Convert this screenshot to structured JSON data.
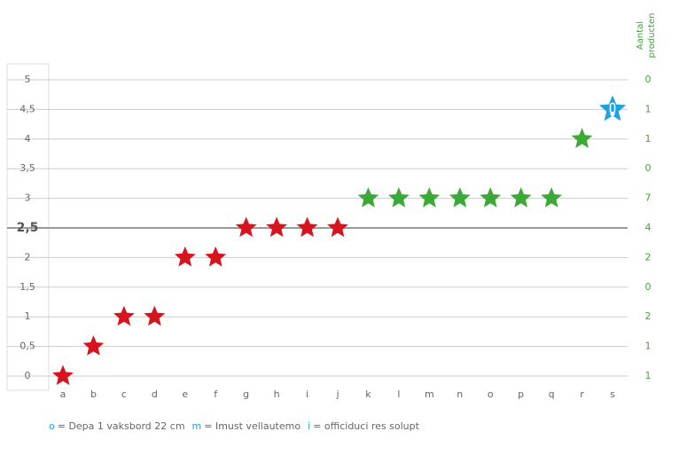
{
  "chart_data": {
    "type": "star-scatter",
    "y2_title_lines": [
      "Aantal",
      "producten"
    ],
    "categories": [
      "a",
      "b",
      "c",
      "d",
      "e",
      "f",
      "g",
      "h",
      "i",
      "j",
      "k",
      "l",
      "m",
      "n",
      "o",
      "p",
      "q",
      "r",
      "s"
    ],
    "values": [
      0,
      0.5,
      1,
      1,
      2,
      2,
      2.5,
      2.5,
      2.5,
      2.5,
      3,
      3,
      3,
      3,
      3,
      3,
      3,
      4,
      4.5
    ],
    "colors": [
      "#d7141e",
      "#d7141e",
      "#d7141e",
      "#d7141e",
      "#d7141e",
      "#d7141e",
      "#d7141e",
      "#d7141e",
      "#d7141e",
      "#d7141e",
      "#3aa935",
      "#3aa935",
      "#3aa935",
      "#3aa935",
      "#3aa935",
      "#3aa935",
      "#3aa935",
      "#3aa935",
      "#1aa3e0"
    ],
    "ylim": [
      0,
      5
    ],
    "yticks": [
      0,
      {
        "value": 0.5,
        "label": "0,5"
      },
      1,
      {
        "value": 1.5,
        "label": "1,5"
      },
      2,
      {
        "value": 2.5,
        "label": "2,5"
      },
      3,
      {
        "value": 3.5,
        "label": "3,5"
      },
      4,
      {
        "value": 4.5,
        "label": "4,5"
      },
      5
    ],
    "y2_counts": [
      1,
      1,
      2,
      0,
      2,
      4,
      7,
      0,
      1,
      1,
      0
    ],
    "y2_color": "#3aa935",
    "bold_tick": 2.5,
    "grid": true,
    "legend": [
      {
        "key": "o",
        "text": "= Depa 1 vaksbord 22 cm"
      },
      {
        "key": "m",
        "text": "= Imust vellautemo"
      },
      {
        "key": "i",
        "text": "= officiduci res solupt"
      }
    ]
  }
}
